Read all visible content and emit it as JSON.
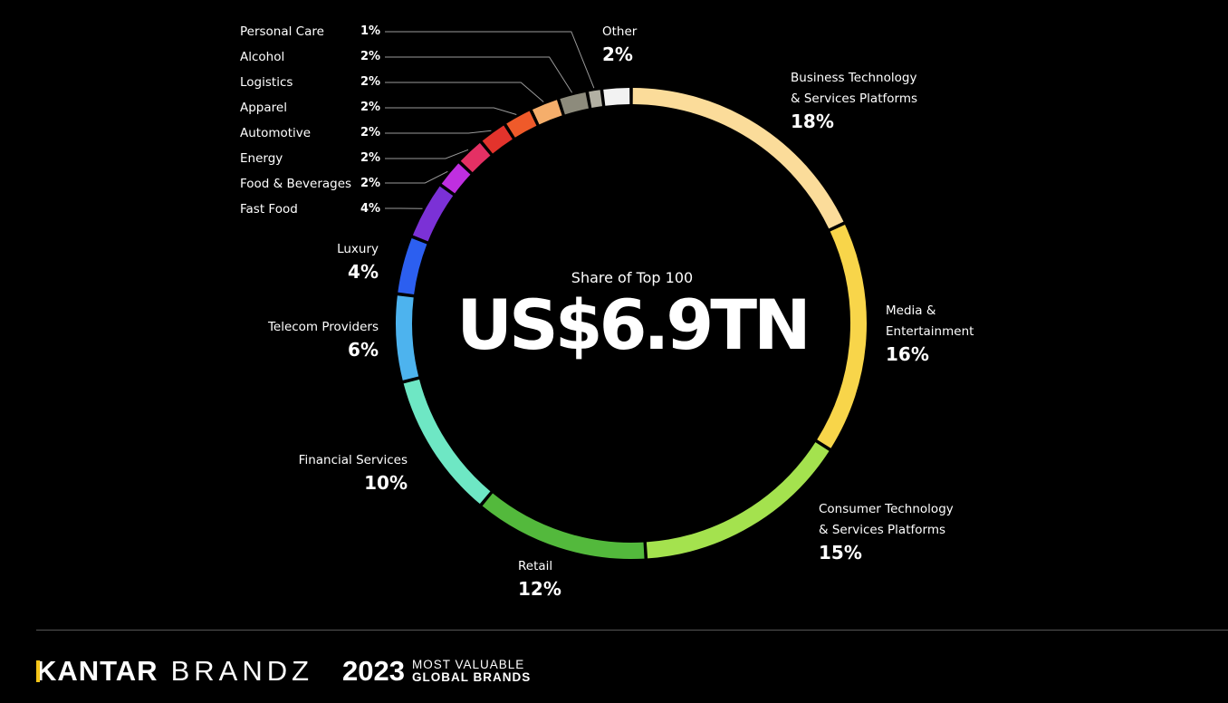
{
  "chart_data": {
    "type": "pie",
    "subtitle": "Share of Top 100",
    "total": "US$6.9TN",
    "slices": [
      {
        "name": "Business Technology & Services Platforms",
        "name_lines": [
          "Business Technology",
          "& Services Platforms"
        ],
        "label": "18%",
        "value": 18,
        "color": "#fbdc9a"
      },
      {
        "name": "Media & Entertainment",
        "name_lines": [
          "Media &",
          "Entertainment"
        ],
        "label": "16%",
        "value": 16,
        "color": "#f8d54a"
      },
      {
        "name": "Consumer Technology & Services Platforms",
        "name_lines": [
          "Consumer Technology",
          "& Services Platforms"
        ],
        "label": "15%",
        "value": 15,
        "color": "#a4e24e"
      },
      {
        "name": "Retail",
        "name_lines": [
          "Retail"
        ],
        "label": "12%",
        "value": 12,
        "color": "#53b93c"
      },
      {
        "name": "Financial Services",
        "name_lines": [
          "Financial Services"
        ],
        "label": "10%",
        "value": 10,
        "color": "#6ee7c4"
      },
      {
        "name": "Telecom Providers",
        "name_lines": [
          "Telecom Providers"
        ],
        "label": "6%",
        "value": 6,
        "color": "#4db3ee"
      },
      {
        "name": "Luxury",
        "name_lines": [
          "Luxury"
        ],
        "label": "4%",
        "value": 4,
        "color": "#2c5ff0"
      },
      {
        "name": "Fast Food",
        "name_lines": [
          "Fast Food"
        ],
        "label": "4%",
        "value": 4,
        "color": "#7b31d6"
      },
      {
        "name": "Food & Beverages",
        "name_lines": [
          "Food & Beverages"
        ],
        "label": "2%",
        "value": 2,
        "color": "#bf2fe0"
      },
      {
        "name": "Energy",
        "name_lines": [
          "Energy"
        ],
        "label": "2%",
        "value": 2,
        "color": "#e43064"
      },
      {
        "name": "Automotive",
        "name_lines": [
          "Automotive"
        ],
        "label": "2%",
        "value": 2,
        "color": "#e3332c"
      },
      {
        "name": "Apparel",
        "name_lines": [
          "Apparel"
        ],
        "label": "2%",
        "value": 2,
        "color": "#ef5a2a"
      },
      {
        "name": "Logistics",
        "name_lines": [
          "Logistics"
        ],
        "label": "2%",
        "value": 2,
        "color": "#f5ae6b"
      },
      {
        "name": "Alcohol",
        "name_lines": [
          "Alcohol"
        ],
        "label": "2%",
        "value": 2,
        "color": "#8d8b7c"
      },
      {
        "name": "Personal Care",
        "name_lines": [
          "Personal Care"
        ],
        "label": "1%",
        "value": 1,
        "color": "#b2b0a3"
      },
      {
        "name": "Other",
        "name_lines": [
          "Other"
        ],
        "label": "2%",
        "value": 2,
        "color": "#f2f2f2"
      }
    ]
  },
  "footer": {
    "brand": "KANTAR",
    "product": "BRANDZ",
    "year": "2023",
    "tagline_line1": "MOST VALUABLE",
    "tagline_line2": "GLOBAL BRANDS",
    "accent_color": "#f5c518"
  }
}
